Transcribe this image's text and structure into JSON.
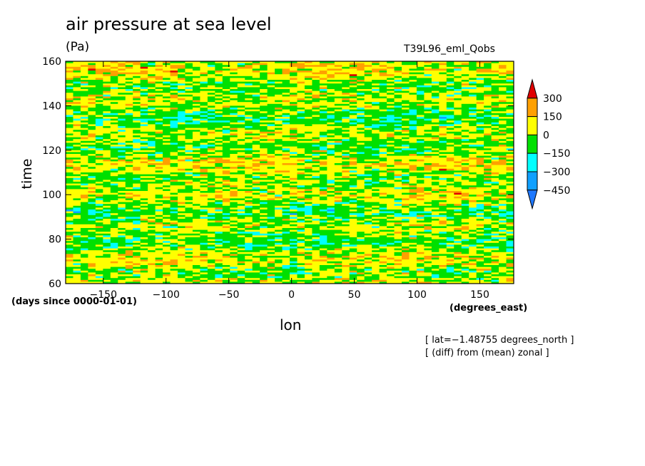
{
  "chart_data": {
    "type": "heatmap",
    "title": "air pressure at sea level",
    "units": "(Pa)",
    "run_label": "T39L96_eml_Qobs",
    "xlabel": "lon",
    "xunits": "(degrees_east)",
    "ylabel": "time",
    "yunits": "(days since 0000-01-01)",
    "xlim": [
      -180,
      177
    ],
    "ylim": [
      60,
      160
    ],
    "xticks": [
      -150,
      -100,
      -50,
      0,
      50,
      100,
      150
    ],
    "xtick_labels": [
      "−150",
      "−100",
      "−50",
      "0",
      "50",
      "100",
      "150"
    ],
    "yticks": [
      60,
      80,
      100,
      120,
      140,
      160
    ],
    "ytick_labels": [
      "60",
      "80",
      "100",
      "120",
      "140",
      "160"
    ],
    "colorbar": {
      "levels": [
        -450,
        -300,
        -150,
        0,
        150,
        300
      ],
      "level_labels": [
        "−450",
        "−300",
        "−150",
        "0",
        "150",
        "300"
      ],
      "colors": [
        "#1e78ff",
        "#10a0ff",
        "#00ffff",
        "#00e000",
        "#ffff00",
        "#ffa000",
        "#e00000"
      ],
      "extend": "both"
    },
    "annotations": [
      "[ lat=−1.48755 degrees_north ]",
      "[ (diff) from (mean) zonal ]"
    ]
  }
}
